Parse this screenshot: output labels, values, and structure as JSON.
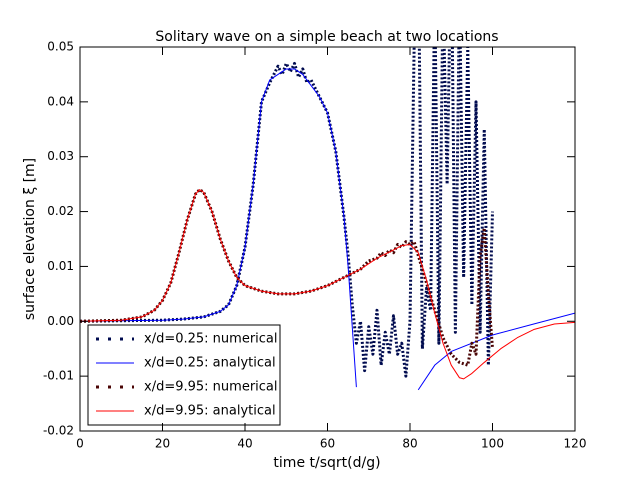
{
  "chart_data": {
    "type": "line",
    "title": "Solitary wave on a simple beach at two locations",
    "x_label": "time  t/sqrt(d/g)",
    "y_label": "surface elevation ξ  [m]",
    "xlim": [
      0,
      120
    ],
    "ylim": [
      -0.02,
      0.05
    ],
    "xticks": [
      0,
      20,
      40,
      60,
      80,
      100,
      120
    ],
    "yticks": [
      -0.02,
      -0.01,
      {
        "value": 0,
        "label": "0.00"
      },
      0.01,
      0.02,
      0.03,
      0.04,
      0.05
    ],
    "legend": "lower left",
    "series": [
      {
        "name": "x/d=0.25: numerical",
        "color": "#000b4f",
        "style": "dotted",
        "x": [
          0,
          10,
          20,
          25,
          30,
          34,
          36,
          38,
          40,
          42,
          44,
          46,
          47,
          48,
          49,
          50,
          51,
          52,
          53,
          54,
          55,
          56,
          58,
          60,
          62,
          64,
          65,
          66,
          67,
          68,
          69,
          70,
          71,
          72,
          73,
          74,
          75,
          76,
          77,
          78,
          79,
          80,
          81,
          82,
          83,
          84,
          85,
          86,
          87,
          88,
          89,
          90,
          91,
          92,
          93,
          94,
          95,
          96,
          97,
          98,
          99,
          100
        ],
        "values": [
          0,
          0.0001,
          0.0002,
          0.0004,
          0.0008,
          0.0018,
          0.003,
          0.0065,
          0.0135,
          0.025,
          0.04,
          0.0435,
          0.045,
          0.0465,
          0.045,
          0.047,
          0.0455,
          0.047,
          0.0445,
          0.046,
          0.0435,
          0.044,
          0.041,
          0.038,
          0.031,
          0.019,
          0.012,
          0.003,
          -0.004,
          0,
          -0.009,
          -0.001,
          -0.006,
          0.002,
          -0.008,
          -0.002,
          -0.006,
          0.001,
          -0.006,
          -0.004,
          -0.01,
          0,
          0.05,
          0.07,
          -0.005,
          0.006,
          0.002,
          0.06,
          -0.004,
          0.06,
          0.025,
          0.07,
          -0.002,
          0.06,
          0.008,
          0.05,
          0.003,
          0.04,
          -0.002,
          0.035,
          -0.008,
          0.02
        ]
      },
      {
        "name": "x/d=0.25: analytical",
        "color": "#0000ff",
        "style": "solid",
        "x": [
          0,
          10,
          20,
          25,
          30,
          34,
          36,
          38,
          40,
          42,
          44,
          46,
          48,
          50,
          52,
          54,
          56,
          58,
          60,
          62,
          64,
          65,
          66,
          67,
          74,
          82,
          86,
          90,
          100,
          110,
          120
        ],
        "values": [
          0,
          0.0001,
          0.0002,
          0.0004,
          0.0008,
          0.0018,
          0.003,
          0.0065,
          0.0135,
          0.025,
          0.04,
          0.044,
          0.045,
          0.046,
          0.046,
          0.045,
          0.043,
          0.041,
          0.038,
          0.031,
          0.019,
          0.01,
          -0.001,
          -0.012,
          null,
          -0.0125,
          -0.008,
          -0.0055,
          -0.0025,
          -0.0005,
          0.0015
        ]
      },
      {
        "name": "x/d=9.95: numerical",
        "color": "#4a0505",
        "style": "dotted",
        "x": [
          0,
          10,
          15,
          18,
          20,
          22,
          24,
          26,
          28,
          29,
          30,
          32,
          34,
          36,
          38,
          40,
          44,
          48,
          52,
          56,
          60,
          64,
          68,
          70,
          72,
          73,
          74,
          75,
          76,
          77,
          78,
          79,
          80,
          81,
          82,
          84,
          86,
          88,
          90,
          92,
          94,
          95,
          96,
          97,
          98,
          99,
          100
        ],
        "values": [
          0,
          0.0002,
          0.0008,
          0.002,
          0.0038,
          0.007,
          0.0125,
          0.0185,
          0.0232,
          0.024,
          0.0235,
          0.02,
          0.015,
          0.011,
          0.008,
          0.0065,
          0.0055,
          0.005,
          0.005,
          0.0055,
          0.0065,
          0.008,
          0.0095,
          0.011,
          0.0115,
          0.0125,
          0.012,
          0.013,
          0.0125,
          0.014,
          0.0135,
          0.0145,
          0.014,
          0.0145,
          0.012,
          0.007,
          0.002,
          -0.003,
          -0.006,
          -0.0075,
          -0.008,
          -0.004,
          -0.006,
          0.012,
          0.017,
          0.005,
          -0.005
        ]
      },
      {
        "name": "x/d=9.95: analytical",
        "color": "#ff0000",
        "style": "solid",
        "x": [
          0,
          10,
          15,
          18,
          20,
          22,
          24,
          26,
          28,
          29,
          30,
          32,
          34,
          36,
          38,
          40,
          44,
          48,
          52,
          56,
          60,
          64,
          68,
          72,
          76,
          78,
          80,
          82,
          84,
          86,
          88,
          90,
          92,
          93,
          95,
          98,
          102,
          106,
          110,
          115,
          120
        ],
        "values": [
          0,
          0.0002,
          0.0008,
          0.002,
          0.0038,
          0.007,
          0.0125,
          0.0185,
          0.0232,
          0.024,
          0.0235,
          0.02,
          0.015,
          0.011,
          0.008,
          0.0065,
          0.0055,
          0.005,
          0.005,
          0.0055,
          0.0065,
          0.008,
          0.0095,
          0.0115,
          0.013,
          0.0138,
          0.014,
          0.0125,
          0.0075,
          0.0015,
          -0.004,
          -0.008,
          -0.0103,
          -0.0105,
          -0.0095,
          -0.0075,
          -0.005,
          -0.003,
          -0.0015,
          -0.0005,
          -0.0002
        ]
      }
    ]
  }
}
